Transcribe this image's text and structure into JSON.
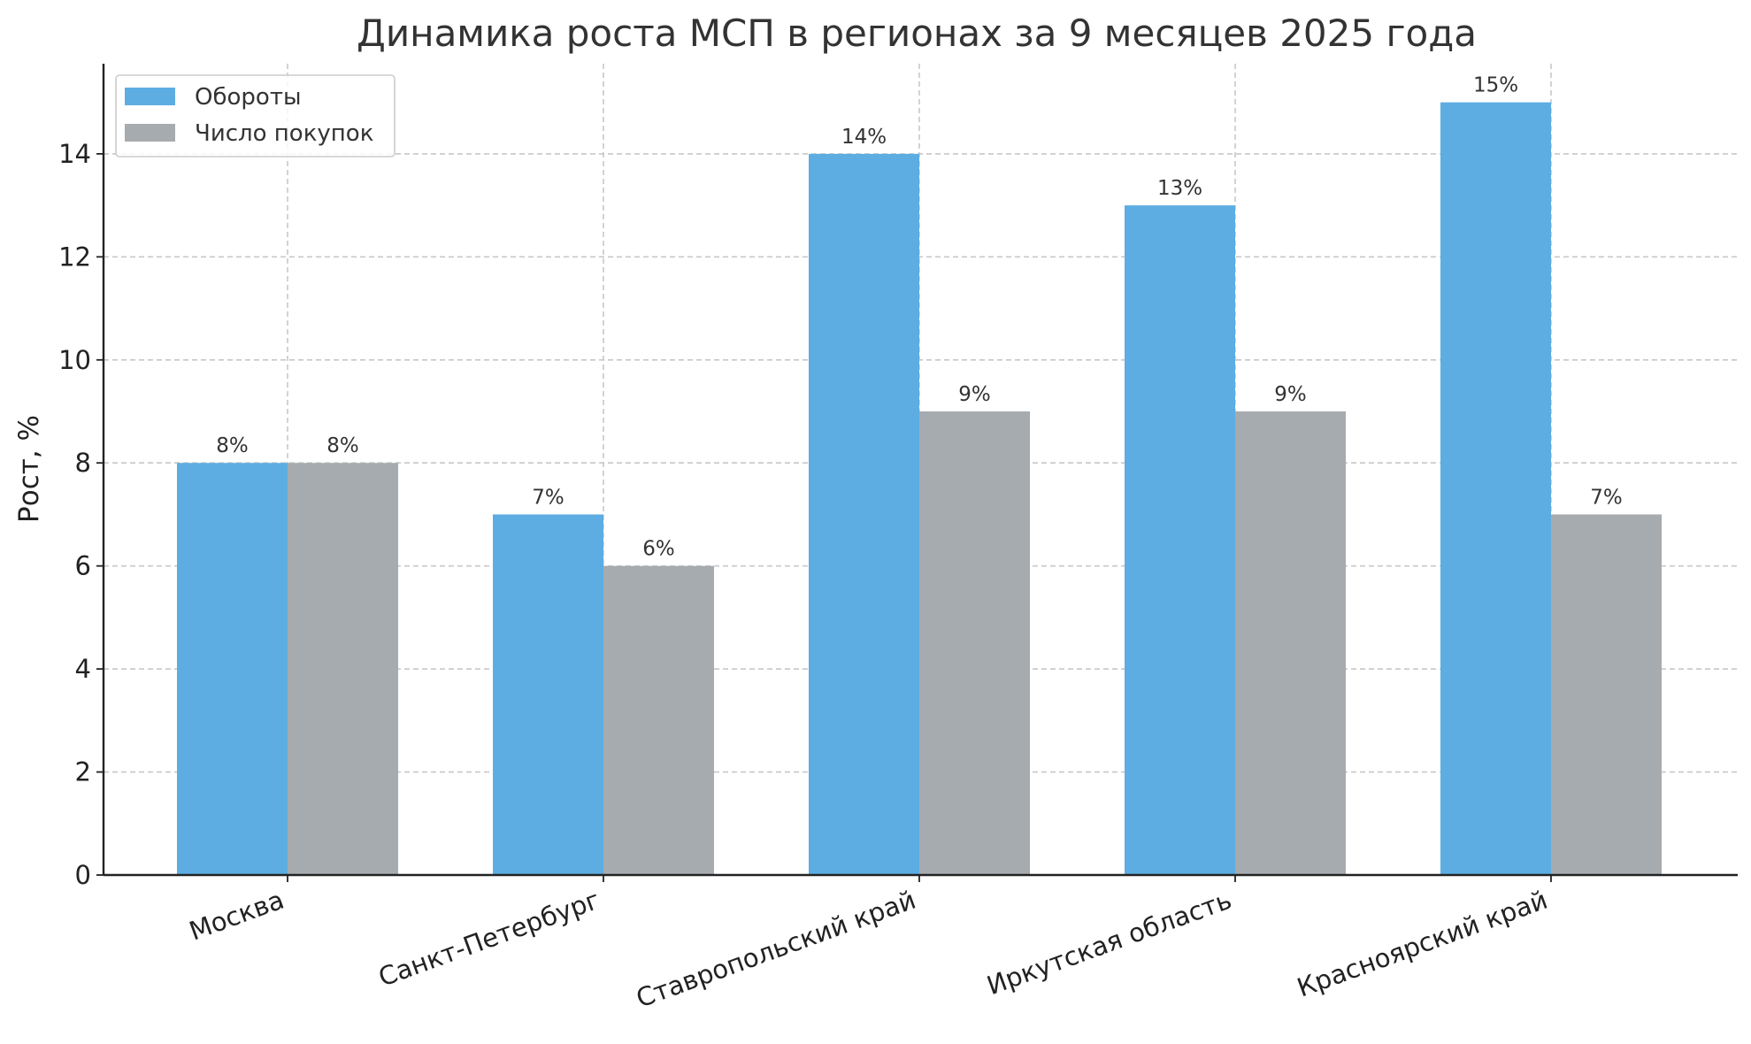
{
  "chart_data": {
    "type": "bar",
    "title": "Динамика роста МСП в регионах за 9 месяцев 2025 года",
    "xlabel": "",
    "ylabel": "Рост, %",
    "categories": [
      "Москва",
      "Санкт-Петербург",
      "Ставропольский край",
      "Иркутская область",
      "Красноярский край"
    ],
    "series": [
      {
        "name": "Обороты",
        "color": "#5dade2",
        "values": [
          8,
          7,
          14,
          13,
          15
        ],
        "labels": [
          "8%",
          "7%",
          "14%",
          "13%",
          "15%"
        ]
      },
      {
        "name": "Число покупок",
        "color": "#a6abaf",
        "values": [
          8,
          6,
          9,
          9,
          7
        ],
        "labels": [
          "8%",
          "6%",
          "9%",
          "9%",
          "7%"
        ]
      }
    ],
    "ylim": [
      0,
      15.75
    ],
    "yticks": [
      0,
      2,
      4,
      6,
      8,
      10,
      12,
      14
    ],
    "ytick_labels": [
      "0",
      "2",
      "4",
      "6",
      "8",
      "10",
      "12",
      "14"
    ],
    "grid": true,
    "legend_position": "top-left"
  }
}
